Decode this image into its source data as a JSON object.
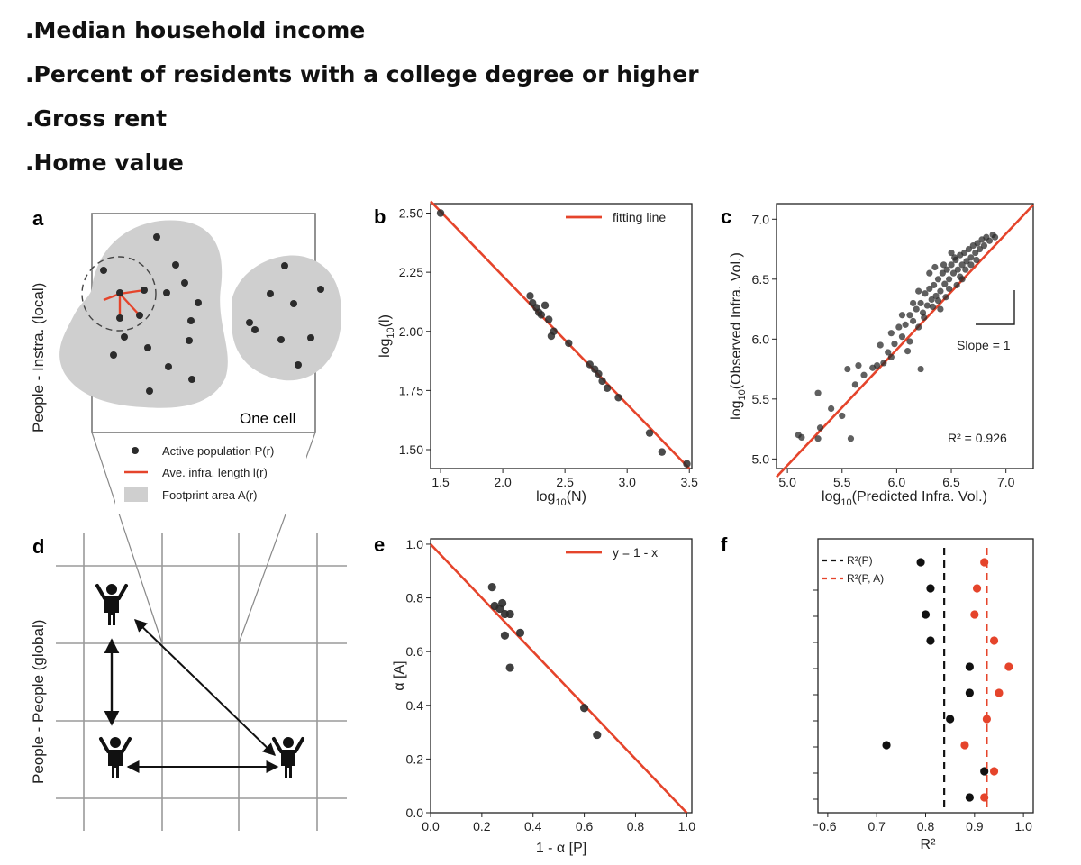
{
  "bullets": [
    ".Median household income",
    ".Percent of residents with a college degree or higher",
    ".Gross rent",
    ".Home value"
  ],
  "colors": {
    "red": "#e5442b",
    "dot": "#2b2b2b",
    "gray": "#cfcfcf",
    "grid": "#9a9a9a"
  },
  "panel_a": {
    "letter": "a",
    "side_label": "People - Instra. (local)",
    "cell_label": "One cell",
    "legend": [
      {
        "symbol": "dot",
        "text": "Active population P(r)"
      },
      {
        "symbol": "red-line",
        "text": "Ave. infra. length l(r)"
      },
      {
        "symbol": "gray-box",
        "text": "Footprint area A(r)"
      }
    ]
  },
  "panel_d": {
    "letter": "d",
    "side_label": "People - People (global)"
  },
  "chart_data": [
    {
      "panel": "b",
      "type": "scatter",
      "xlabel": "log10(N)",
      "ylabel": "log10(l)",
      "xlim": [
        1.42,
        3.52
      ],
      "ylim": [
        1.42,
        2.54
      ],
      "xticks": [
        "1.5",
        "2.0",
        "2.5",
        "3.0",
        "3.5"
      ],
      "yticks": [
        "1.50",
        "1.75",
        "2.00",
        "2.25",
        "2.50"
      ],
      "legend": "fitting line",
      "legend_position": "top-right",
      "fit_line": {
        "x": [
          1.42,
          3.5
        ],
        "y": [
          2.55,
          1.42
        ]
      },
      "points": [
        [
          1.5,
          2.5
        ],
        [
          2.22,
          2.15
        ],
        [
          2.24,
          2.12
        ],
        [
          2.27,
          2.1
        ],
        [
          2.29,
          2.08
        ],
        [
          2.31,
          2.07
        ],
        [
          2.34,
          2.11
        ],
        [
          2.37,
          2.05
        ],
        [
          2.39,
          1.98
        ],
        [
          2.41,
          2.0
        ],
        [
          2.53,
          1.95
        ],
        [
          2.7,
          1.86
        ],
        [
          2.74,
          1.84
        ],
        [
          2.77,
          1.82
        ],
        [
          2.8,
          1.79
        ],
        [
          2.84,
          1.76
        ],
        [
          2.93,
          1.72
        ],
        [
          3.18,
          1.57
        ],
        [
          3.28,
          1.49
        ],
        [
          3.48,
          1.44
        ]
      ]
    },
    {
      "panel": "c",
      "type": "scatter",
      "xlabel": "log10(Predicted Infra. Vol.)",
      "ylabel": "log10(Observed Infra. Vol.)",
      "xlim": [
        4.9,
        7.25
      ],
      "ylim": [
        4.92,
        7.13
      ],
      "xticks": [
        "5.0",
        "5.5",
        "6.0",
        "6.5",
        "7.0"
      ],
      "yticks": [
        "5.0",
        "5.5",
        "6.0",
        "6.5",
        "7.0"
      ],
      "fit_line": {
        "x": [
          4.9,
          7.25
        ],
        "y": [
          4.85,
          7.12
        ]
      },
      "slope_label": "Slope = 1",
      "r2_label": "R² = 0.926",
      "points": [
        [
          5.1,
          5.2
        ],
        [
          5.13,
          5.18
        ],
        [
          5.28,
          5.55
        ],
        [
          5.28,
          5.17
        ],
        [
          5.3,
          5.26
        ],
        [
          5.4,
          5.42
        ],
        [
          5.5,
          5.36
        ],
        [
          5.55,
          5.75
        ],
        [
          5.58,
          5.17
        ],
        [
          5.62,
          5.62
        ],
        [
          5.65,
          5.78
        ],
        [
          5.7,
          5.7
        ],
        [
          5.78,
          5.76
        ],
        [
          5.82,
          5.78
        ],
        [
          5.85,
          5.95
        ],
        [
          5.88,
          5.8
        ],
        [
          5.92,
          5.89
        ],
        [
          5.95,
          6.05
        ],
        [
          5.98,
          5.96
        ],
        [
          6.02,
          6.1
        ],
        [
          6.05,
          6.02
        ],
        [
          6.08,
          6.12
        ],
        [
          6.1,
          5.9
        ],
        [
          6.12,
          6.2
        ],
        [
          6.15,
          6.15
        ],
        [
          6.18,
          6.25
        ],
        [
          6.2,
          6.1
        ],
        [
          6.22,
          6.3
        ],
        [
          6.24,
          6.22
        ],
        [
          6.26,
          6.38
        ],
        [
          6.28,
          6.28
        ],
        [
          6.3,
          6.42
        ],
        [
          6.32,
          6.33
        ],
        [
          6.34,
          6.45
        ],
        [
          6.36,
          6.36
        ],
        [
          6.38,
          6.5
        ],
        [
          6.4,
          6.4
        ],
        [
          6.42,
          6.55
        ],
        [
          6.44,
          6.46
        ],
        [
          6.46,
          6.58
        ],
        [
          6.48,
          6.5
        ],
        [
          6.5,
          6.62
        ],
        [
          6.52,
          6.55
        ],
        [
          6.54,
          6.66
        ],
        [
          6.56,
          6.58
        ],
        [
          6.58,
          6.7
        ],
        [
          6.6,
          6.62
        ],
        [
          6.62,
          6.72
        ],
        [
          6.64,
          6.65
        ],
        [
          6.66,
          6.75
        ],
        [
          6.68,
          6.68
        ],
        [
          6.7,
          6.78
        ],
        [
          6.72,
          6.72
        ],
        [
          6.74,
          6.8
        ],
        [
          6.76,
          6.75
        ],
        [
          6.78,
          6.83
        ],
        [
          6.8,
          6.78
        ],
        [
          6.82,
          6.85
        ],
        [
          6.85,
          6.82
        ],
        [
          6.88,
          6.87
        ],
        [
          6.9,
          6.85
        ],
        [
          6.3,
          6.55
        ],
        [
          6.35,
          6.6
        ],
        [
          6.4,
          6.25
        ],
        [
          6.45,
          6.35
        ],
        [
          6.5,
          6.72
        ],
        [
          6.55,
          6.45
        ],
        [
          6.6,
          6.5
        ],
        [
          6.2,
          6.4
        ],
        [
          6.25,
          6.18
        ],
        [
          6.15,
          6.3
        ],
        [
          6.33,
          6.27
        ],
        [
          6.43,
          6.62
        ],
        [
          6.53,
          6.68
        ],
        [
          6.63,
          6.58
        ],
        [
          6.73,
          6.66
        ],
        [
          6.38,
          6.32
        ],
        [
          6.48,
          6.42
        ],
        [
          6.58,
          6.52
        ],
        [
          6.68,
          6.62
        ],
        [
          6.12,
          5.98
        ],
        [
          6.05,
          6.2
        ],
        [
          5.95,
          5.85
        ],
        [
          6.22,
          5.75
        ]
      ]
    },
    {
      "panel": "e",
      "type": "scatter",
      "xlabel": "1 - α [P]",
      "ylabel": "α [A]",
      "xlim": [
        0.0,
        1.02
      ],
      "ylim": [
        0.0,
        1.02
      ],
      "xticks": [
        "0.0",
        "0.2",
        "0.4",
        "0.6",
        "0.8",
        "1.0"
      ],
      "yticks": [
        "0.0",
        "0.2",
        "0.4",
        "0.6",
        "0.8",
        "1.0"
      ],
      "legend": "y = 1 - x",
      "legend_position": "top-right",
      "fit_line": {
        "x": [
          0.0,
          1.0
        ],
        "y": [
          1.0,
          0.0
        ]
      },
      "points": [
        [
          0.24,
          0.84
        ],
        [
          0.25,
          0.77
        ],
        [
          0.27,
          0.76
        ],
        [
          0.28,
          0.78
        ],
        [
          0.29,
          0.74
        ],
        [
          0.31,
          0.74
        ],
        [
          0.29,
          0.66
        ],
        [
          0.35,
          0.67
        ],
        [
          0.31,
          0.54
        ],
        [
          0.6,
          0.39
        ],
        [
          0.65,
          0.29
        ]
      ]
    },
    {
      "panel": "f",
      "type": "scatter",
      "xlabel": "R²",
      "xlim": [
        0.58,
        1.02
      ],
      "xticks": [
        "0.6",
        "0.7",
        "0.8",
        "0.9",
        "1.0"
      ],
      "legend_position": "top-left",
      "series": [
        {
          "name": "R²(P)",
          "color": "#111111",
          "mean_line": 0.838,
          "values": [
            0.79,
            0.81,
            0.8,
            0.81,
            0.89,
            0.89,
            0.85,
            0.72,
            0.92,
            0.89
          ]
        },
        {
          "name": "R²(P, A)",
          "color": "#e5442b",
          "mean_line": 0.925,
          "values": [
            0.92,
            0.905,
            0.9,
            0.94,
            0.97,
            0.95,
            0.925,
            0.88,
            0.94,
            0.92
          ]
        }
      ]
    }
  ]
}
